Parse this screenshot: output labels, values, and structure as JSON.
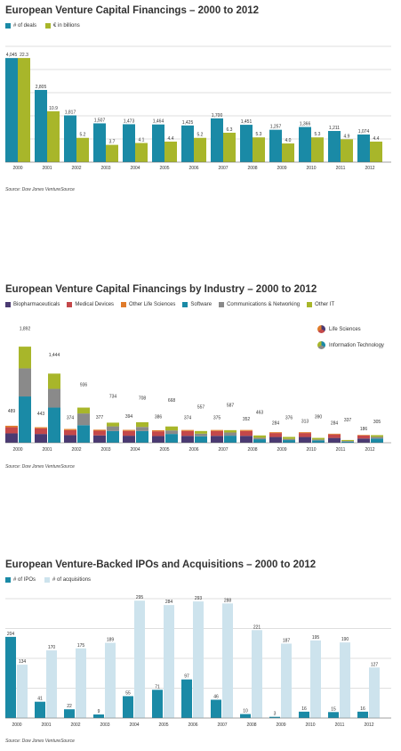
{
  "colors": {
    "teal": "#1a8aa6",
    "lime": "#a8b62a",
    "purple": "#4a3a72",
    "red": "#c4484a",
    "orange": "#e07b2a",
    "gray": "#8a8a8a",
    "lightblue": "#cde3ed",
    "grid": "#bfbfbf"
  },
  "chart_data": [
    {
      "type": "bar",
      "title": "European Venture Capital Financings – 2000 to 2012",
      "categories": [
        "2000",
        "2001",
        "2002",
        "2003",
        "2004",
        "2005",
        "2006",
        "2007",
        "2008",
        "2009",
        "2010",
        "2011",
        "2012"
      ],
      "series": [
        {
          "name": "# of deals",
          "values": [
            4045,
            2805,
            1817,
            1507,
            1473,
            1464,
            1425,
            1700,
            1451,
            1257,
            1366,
            1211,
            1074
          ],
          "labels": [
            "4,045",
            "2,805",
            "1,817",
            "1,507",
            "1,473",
            "1,464",
            "1,425",
            "1,700",
            "1,451",
            "1,257",
            "1,366",
            "1,211",
            "1,074"
          ]
        },
        {
          "name": "€ in billions",
          "values": [
            22.3,
            10.9,
            5.2,
            3.7,
            4.1,
            4.4,
            5.2,
            6.3,
            5.3,
            4.0,
            5.3,
            4.9,
            4.4
          ],
          "labels": [
            "22.3",
            "10.9",
            "5.2",
            "3.7",
            "4.1",
            "4.4",
            "5.2",
            "6.3",
            "5.3",
            "4.0",
            "5.3",
            "4.9",
            "4.4"
          ]
        }
      ],
      "source": "Source: Dow Jones VentureSource"
    },
    {
      "type": "bar",
      "stacked": true,
      "title": "European Venture Capital Financings by Industry – 2000 to 2012",
      "categories": [
        "2000",
        "2001",
        "2002",
        "2003",
        "2004",
        "2005",
        "2006",
        "2007",
        "2008",
        "2009",
        "2010",
        "2011",
        "2012"
      ],
      "series_names": [
        "Biopharmaceuticals",
        "Medical Devices",
        "Other Life Sciences",
        "Software",
        "Communications & Networking",
        "Other IT"
      ],
      "life_sciences": [
        [
          160,
          105,
          25
        ],
        [
          150,
          95,
          20
        ],
        [
          130,
          85,
          20
        ],
        [
          125,
          80,
          18
        ],
        [
          120,
          82,
          18
        ],
        [
          115,
          80,
          18
        ],
        [
          118,
          82,
          18
        ],
        [
          118,
          82,
          18
        ],
        [
          118,
          82,
          18
        ],
        [
          98,
          68,
          14
        ],
        [
          98,
          68,
          14
        ],
        [
          82,
          60,
          12
        ],
        [
          72,
          52,
          10
        ]
      ],
      "life_sciences_totals": [
        489,
        443,
        374,
        377,
        394,
        386,
        374,
        375,
        352,
        284,
        313,
        284,
        186
      ],
      "it": [
        [
          790,
          480,
          370
        ],
        [
          600,
          320,
          260
        ],
        [
          300,
          200,
          100
        ],
        [
          200,
          80,
          63
        ],
        [
          200,
          70,
          80
        ],
        [
          150,
          60,
          68
        ],
        [
          110,
          45,
          45
        ],
        [
          120,
          55,
          40
        ],
        [
          60,
          25,
          40
        ],
        [
          45,
          20,
          35
        ],
        [
          40,
          15,
          28
        ],
        [
          20,
          10,
          17
        ],
        [
          72,
          28,
          30
        ]
      ],
      "it_totals": [
        1892,
        1444,
        936,
        734,
        708,
        668,
        557,
        587,
        463,
        376,
        390,
        337,
        305
      ],
      "pie_legend": [
        "Life Sciences",
        "Information Technology"
      ],
      "source": "Source: Dow Jones VentureSource"
    },
    {
      "type": "bar",
      "title": "European Venture-Backed IPOs and Acquisitions – 2000 to 2012",
      "categories": [
        "2000",
        "2001",
        "2002",
        "2003",
        "2004",
        "2005",
        "2006",
        "2007",
        "2008",
        "2009",
        "2010",
        "2011",
        "2012"
      ],
      "series": [
        {
          "name": "# of IPOs",
          "values": [
            204,
            41,
            22,
            9,
            55,
            71,
            97,
            46,
            10,
            3,
            16,
            15,
            16
          ]
        },
        {
          "name": "# of acquisitions",
          "values": [
            134,
            170,
            175,
            189,
            295,
            284,
            293,
            288,
            221,
            187,
            195,
            190,
            127
          ]
        }
      ],
      "source": "Source: Dow Jones VentureSource"
    }
  ]
}
